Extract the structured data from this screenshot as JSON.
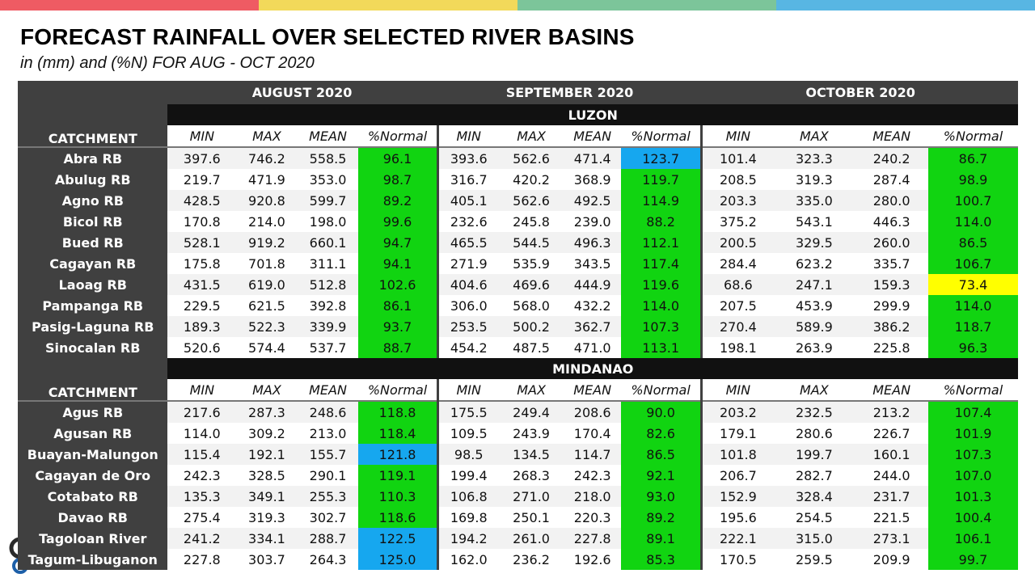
{
  "header": {
    "title": "FORECAST RAINFALL OVER SELECTED RIVER BASINS",
    "subtitle": "in (mm) and (%N) FOR  AUG - OCT 2020"
  },
  "colors": {
    "topbar": [
      "#ef5b63",
      "#f2d95a",
      "#7cc59a",
      "#58b6e3"
    ],
    "header_bg": "#404040",
    "region_bg": "#111111",
    "green": "#11d411",
    "blue": "#16a7ef",
    "yellow": "#ffff00"
  },
  "table": {
    "months": [
      "AUGUST 2020",
      "SEPTEMBER 2020",
      "OCTOBER 2020"
    ],
    "catchment_label": "CATCHMENT",
    "col_headers": [
      "MIN",
      "MAX",
      "MEAN",
      "%Normal"
    ],
    "regions": [
      {
        "name": "LUZON",
        "rows": [
          {
            "name": "Abra RB",
            "v": [
              "397.6",
              "746.2",
              "558.5",
              "96.1",
              "393.6",
              "562.6",
              "471.4",
              "123.7",
              "101.4",
              "323.3",
              "240.2",
              "86.7"
            ],
            "c": [
              "green",
              "blue",
              "green"
            ]
          },
          {
            "name": "Abulug RB",
            "v": [
              "219.7",
              "471.9",
              "353.0",
              "98.7",
              "316.7",
              "420.2",
              "368.9",
              "119.7",
              "208.5",
              "319.3",
              "287.4",
              "98.9"
            ],
            "c": [
              "green",
              "green",
              "green"
            ]
          },
          {
            "name": "Agno RB",
            "v": [
              "428.5",
              "920.8",
              "599.7",
              "89.2",
              "405.1",
              "562.6",
              "492.5",
              "114.9",
              "203.3",
              "335.0",
              "280.0",
              "100.7"
            ],
            "c": [
              "green",
              "green",
              "green"
            ]
          },
          {
            "name": "Bicol RB",
            "v": [
              "170.8",
              "214.0",
              "198.0",
              "99.6",
              "232.6",
              "245.8",
              "239.0",
              "88.2",
              "375.2",
              "543.1",
              "446.3",
              "114.0"
            ],
            "c": [
              "green",
              "green",
              "green"
            ]
          },
          {
            "name": "Bued RB",
            "v": [
              "528.1",
              "919.2",
              "660.1",
              "94.7",
              "465.5",
              "544.5",
              "496.3",
              "112.1",
              "200.5",
              "329.5",
              "260.0",
              "86.5"
            ],
            "c": [
              "green",
              "green",
              "green"
            ]
          },
          {
            "name": "Cagayan RB",
            "v": [
              "175.8",
              "701.8",
              "311.1",
              "94.1",
              "271.9",
              "535.9",
              "343.5",
              "117.4",
              "284.4",
              "623.2",
              "335.7",
              "106.7"
            ],
            "c": [
              "green",
              "green",
              "green"
            ]
          },
          {
            "name": "Laoag RB",
            "v": [
              "431.5",
              "619.0",
              "512.8",
              "102.6",
              "404.6",
              "469.6",
              "444.9",
              "119.6",
              "68.6",
              "247.1",
              "159.3",
              "73.4"
            ],
            "c": [
              "green",
              "green",
              "yellow"
            ]
          },
          {
            "name": "Pampanga RB",
            "v": [
              "229.5",
              "621.5",
              "392.8",
              "86.1",
              "306.0",
              "568.0",
              "432.2",
              "114.0",
              "207.5",
              "453.9",
              "299.9",
              "114.0"
            ],
            "c": [
              "green",
              "green",
              "green"
            ]
          },
          {
            "name": "Pasig-Laguna RB",
            "v": [
              "189.3",
              "522.3",
              "339.9",
              "93.7",
              "253.5",
              "500.2",
              "362.7",
              "107.3",
              "270.4",
              "589.9",
              "386.2",
              "118.7"
            ],
            "c": [
              "green",
              "green",
              "green"
            ]
          },
          {
            "name": "Sinocalan RB",
            "v": [
              "520.6",
              "574.4",
              "537.7",
              "88.7",
              "454.2",
              "487.5",
              "471.0",
              "113.1",
              "198.1",
              "263.9",
              "225.8",
              "96.3"
            ],
            "c": [
              "green",
              "green",
              "green"
            ]
          }
        ]
      },
      {
        "name": "MINDANAO",
        "rows": [
          {
            "name": "Agus RB",
            "v": [
              "217.6",
              "287.3",
              "248.6",
              "118.8",
              "175.5",
              "249.4",
              "208.6",
              "90.0",
              "203.2",
              "232.5",
              "213.2",
              "107.4"
            ],
            "c": [
              "green",
              "green",
              "green"
            ]
          },
          {
            "name": "Agusan RB",
            "v": [
              "114.0",
              "309.2",
              "213.0",
              "118.4",
              "109.5",
              "243.9",
              "170.4",
              "82.6",
              "179.1",
              "280.6",
              "226.7",
              "101.9"
            ],
            "c": [
              "green",
              "green",
              "green"
            ]
          },
          {
            "name": "Buayan-Malungon",
            "v": [
              "115.4",
              "192.1",
              "155.7",
              "121.8",
              "98.5",
              "134.5",
              "114.7",
              "86.5",
              "101.8",
              "199.7",
              "160.1",
              "107.3"
            ],
            "c": [
              "blue",
              "green",
              "green"
            ]
          },
          {
            "name": "Cagayan de Oro",
            "v": [
              "242.3",
              "328.5",
              "290.1",
              "119.1",
              "199.4",
              "268.3",
              "242.3",
              "92.1",
              "206.7",
              "282.7",
              "244.0",
              "107.0"
            ],
            "c": [
              "green",
              "green",
              "green"
            ]
          },
          {
            "name": "Cotabato RB",
            "v": [
              "135.3",
              "349.1",
              "255.3",
              "110.3",
              "106.8",
              "271.0",
              "218.0",
              "93.0",
              "152.9",
              "328.4",
              "231.7",
              "101.3"
            ],
            "c": [
              "green",
              "green",
              "green"
            ]
          },
          {
            "name": "Davao RB",
            "v": [
              "275.4",
              "319.3",
              "302.7",
              "118.6",
              "169.8",
              "250.1",
              "220.3",
              "89.2",
              "195.6",
              "254.5",
              "221.5",
              "100.4"
            ],
            "c": [
              "green",
              "green",
              "green"
            ]
          },
          {
            "name": "Tagoloan River",
            "v": [
              "241.2",
              "334.1",
              "288.7",
              "122.5",
              "194.2",
              "261.0",
              "227.8",
              "89.1",
              "222.1",
              "315.0",
              "273.1",
              "106.1"
            ],
            "c": [
              "blue",
              "green",
              "green"
            ]
          },
          {
            "name": "Tagum-Libuganon",
            "v": [
              "227.8",
              "303.7",
              "264.3",
              "125.0",
              "162.0",
              "236.2",
              "192.6",
              "85.3",
              "170.5",
              "259.5",
              "209.9",
              "99.7"
            ],
            "c": [
              "blue",
              "green",
              "green"
            ]
          }
        ]
      }
    ]
  }
}
